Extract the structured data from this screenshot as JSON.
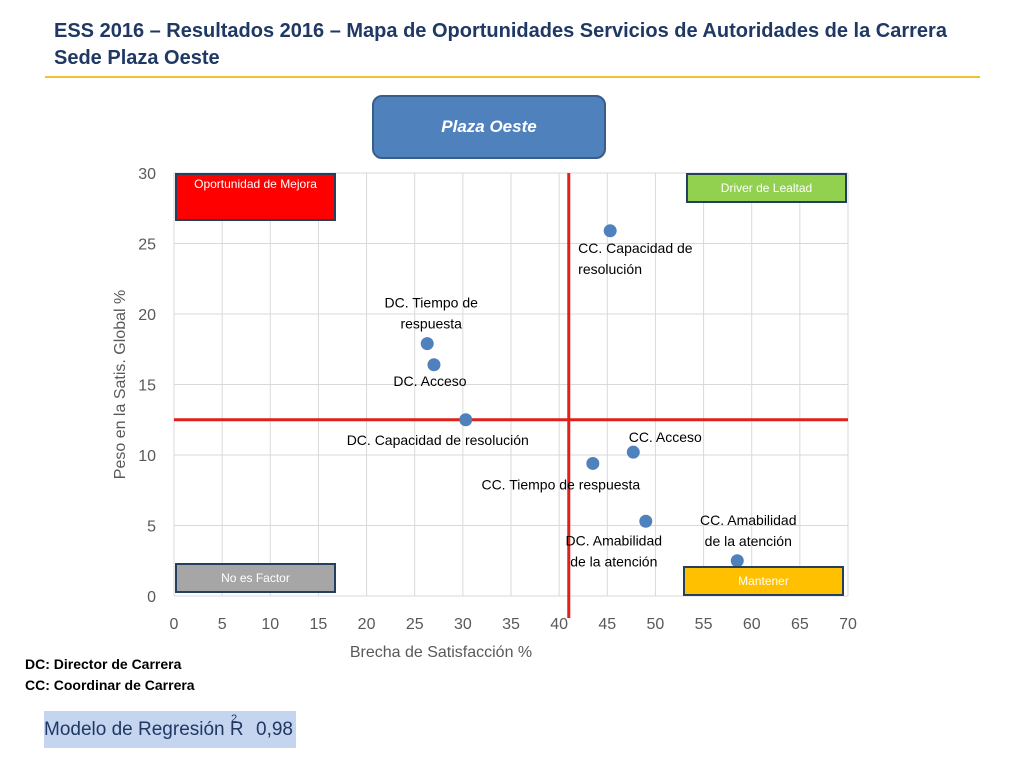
{
  "header": {
    "title": "ESS 2016 – Resultados 2016 – Mapa de Oportunidades Servicios de Autoridades de la Carrera Sede Plaza Oeste",
    "accent_color": "#f2c12e"
  },
  "badge": {
    "label": "Plaza Oeste",
    "color": "#4f81bd"
  },
  "quadrants": {
    "top_left": {
      "label": "Oportunidad de Mejora",
      "color": "#ff0000"
    },
    "top_right": {
      "label": "Driver de Lealtad",
      "color": "#92d050"
    },
    "bottom_left": {
      "label": "No es Factor",
      "color": "#a6a6a6"
    },
    "bottom_right": {
      "label": "Mantener",
      "color": "#ffc000"
    }
  },
  "legend": {
    "dc": "DC: Director de Carrera",
    "cc": "CC: Coordinar de Carrera"
  },
  "regression": {
    "label": "Modelo de Regresión R",
    "superscript": "2",
    "value": "0,98"
  },
  "chart_data": {
    "type": "scatter",
    "xlabel": "Brecha de Satisfacción %",
    "ylabel": "Peso en la Satis. Global %",
    "xlim": [
      0,
      70
    ],
    "ylim": [
      0,
      30
    ],
    "xticks": [
      0,
      5,
      10,
      15,
      20,
      25,
      30,
      35,
      40,
      45,
      50,
      55,
      60,
      65,
      70
    ],
    "yticks": [
      0,
      5,
      10,
      15,
      20,
      25,
      30
    ],
    "grid": true,
    "point_color": "#4f81bd",
    "reference_lines": {
      "x": 41,
      "y": 12.5,
      "color": "#e0201a"
    },
    "points": [
      {
        "label": "CC. Capacidad de resolución",
        "x": 45.3,
        "y": 25.9
      },
      {
        "label": "DC. Tiempo de respuesta",
        "x": 26.3,
        "y": 17.9
      },
      {
        "label": "DC. Acceso",
        "x": 27.0,
        "y": 16.4
      },
      {
        "label": "DC. Capacidad de resolución",
        "x": 30.3,
        "y": 12.5
      },
      {
        "label": "CC. Acceso",
        "x": 47.7,
        "y": 10.2
      },
      {
        "label": "CC. Tiempo de respuesta",
        "x": 43.5,
        "y": 9.4
      },
      {
        "label": "DC. Amabilidad de la atención",
        "x": 49.0,
        "y": 5.3
      },
      {
        "label": "CC. Amabilidad de la atención",
        "x": 58.5,
        "y": 2.5
      }
    ]
  }
}
